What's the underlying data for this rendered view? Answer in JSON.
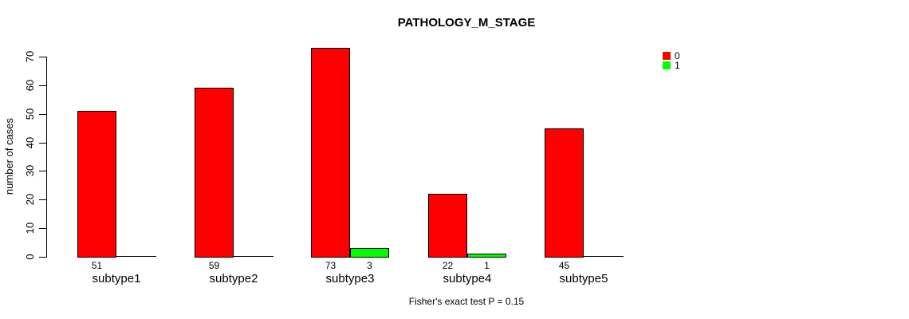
{
  "chart_data": {
    "type": "bar",
    "title": "PATHOLOGY_M_STAGE",
    "ylabel": "number of cases",
    "xlabel": "",
    "categories": [
      "subtype1",
      "subtype2",
      "subtype3",
      "subtype4",
      "subtype5"
    ],
    "series": [
      {
        "name": "0",
        "color": "#ff0000",
        "values": [
          51,
          59,
          73,
          22,
          45
        ],
        "bar_labels": [
          "51",
          "59",
          "73",
          "22",
          "45"
        ]
      },
      {
        "name": "1",
        "color": "#00ff00",
        "values": [
          0,
          0,
          3,
          1,
          0
        ],
        "bar_labels": [
          "",
          "",
          "3",
          "1",
          ""
        ]
      }
    ],
    "ylim": [
      0,
      70
    ],
    "yticks": [
      0,
      10,
      20,
      30,
      40,
      50,
      60,
      70
    ],
    "grid": false,
    "legend_position": "top-right",
    "annotation": "Fisher's exact test P = 0.15",
    "axis_color": "#000000",
    "bar_border_color": "#000000",
    "background_color": "#ffffff"
  }
}
